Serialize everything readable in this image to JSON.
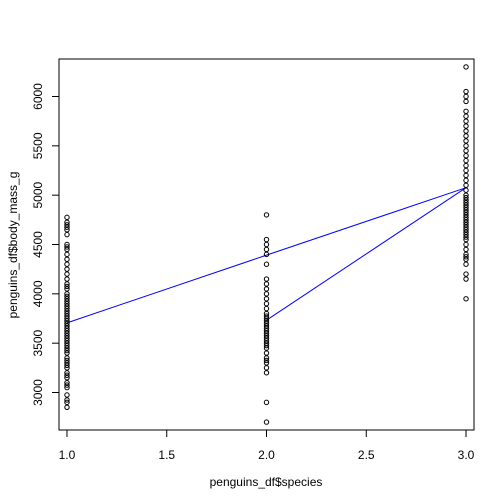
{
  "chart_data": {
    "type": "scatter",
    "title": "",
    "xlabel": "penguins_df$species",
    "ylabel": "penguins_df$body_mass_g",
    "xlim": [
      0.96,
      3.04
    ],
    "ylim": [
      2620,
      6380
    ],
    "x_ticks": [
      1.0,
      1.5,
      2.0,
      2.5,
      3.0
    ],
    "x_tick_labels": [
      "1.0",
      "1.5",
      "2.0",
      "2.5",
      "3.0"
    ],
    "y_ticks": [
      3000,
      3500,
      4000,
      4500,
      5000,
      5500,
      6000
    ],
    "y_tick_labels": [
      "3000",
      "3500",
      "4000",
      "4500",
      "5000",
      "5500",
      "6000"
    ],
    "grid": false,
    "series": [
      {
        "x": 1,
        "values": [
          2850,
          2900,
          2925,
          2975,
          3050,
          3075,
          3100,
          3150,
          3175,
          3200,
          3250,
          3275,
          3300,
          3325,
          3350,
          3400,
          3425,
          3450,
          3475,
          3500,
          3525,
          3550,
          3575,
          3600,
          3625,
          3650,
          3675,
          3700,
          3725,
          3750,
          3775,
          3800,
          3825,
          3850,
          3875,
          3900,
          3925,
          3950,
          3975,
          4000,
          4050,
          4075,
          4100,
          4150,
          4200,
          4250,
          4300,
          4350,
          4400,
          4450,
          4475,
          4500,
          4600,
          4650,
          4675,
          4700,
          4725,
          4775
        ]
      },
      {
        "x": 2,
        "values": [
          2700,
          2900,
          3200,
          3250,
          3300,
          3325,
          3350,
          3400,
          3450,
          3475,
          3500,
          3525,
          3550,
          3575,
          3600,
          3625,
          3650,
          3675,
          3700,
          3725,
          3750,
          3775,
          3800,
          3850,
          3900,
          3950,
          4000,
          4050,
          4100,
          4150,
          4300,
          4400,
          4450,
          4500,
          4550,
          4800
        ]
      },
      {
        "x": 3,
        "values": [
          3950,
          4150,
          4200,
          4300,
          4350,
          4375,
          4400,
          4450,
          4500,
          4550,
          4575,
          4600,
          4625,
          4650,
          4675,
          4700,
          4725,
          4750,
          4775,
          4800,
          4825,
          4850,
          4875,
          4900,
          4925,
          4950,
          4975,
          5000,
          5050,
          5100,
          5150,
          5200,
          5250,
          5300,
          5350,
          5400,
          5450,
          5500,
          5550,
          5600,
          5650,
          5700,
          5750,
          5800,
          5850,
          5950,
          6000,
          6050,
          6300
        ]
      }
    ],
    "lines": [
      {
        "color": "#0000ff",
        "points": [
          [
            1,
            3706
          ],
          [
            2,
            4392
          ],
          [
            3,
            5076
          ]
        ]
      },
      {
        "color": "#0000ff",
        "points": [
          [
            2,
            3733
          ],
          [
            3,
            5076
          ]
        ]
      }
    ]
  }
}
